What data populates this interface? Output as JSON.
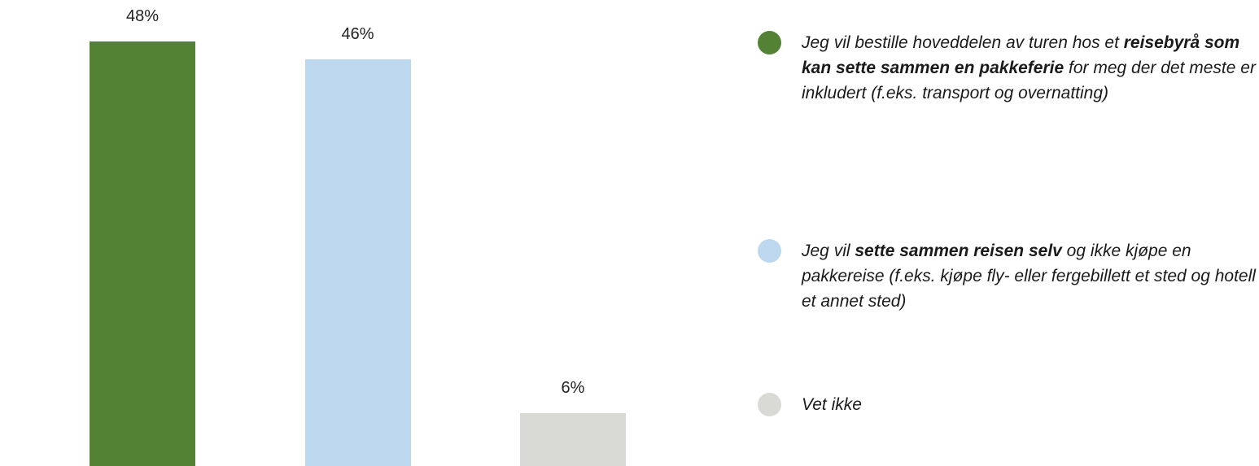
{
  "chart_data": {
    "type": "bar",
    "categories": [
      null,
      null,
      null
    ],
    "values": [
      48,
      46,
      6
    ],
    "value_labels": [
      "48%",
      "46%",
      "6%"
    ],
    "colors": [
      "#548235",
      "#bdd7ee",
      "#d9d9d6"
    ],
    "ylim": [
      0,
      48
    ],
    "legend": [
      {
        "parts": [
          {
            "text": "Jeg vil bestille hoveddelen av turen hos et "
          },
          {
            "text": "reisebyrå som kan sette sammen en pakkeferie",
            "bold": true
          },
          {
            "text": " for meg der det meste er inkludert (f.eks. transport og overnatting)"
          }
        ]
      },
      {
        "parts": [
          {
            "text": "Jeg vil "
          },
          {
            "text": "sette sammen reisen selv",
            "bold": true
          },
          {
            "text": " og ikke kjøpe en pakkereise (f.eks. kjøpe fly- eller fergebillett et sted og hotell et annet sted)"
          }
        ]
      },
      {
        "parts": [
          {
            "text": "Vet ikke"
          }
        ]
      }
    ]
  }
}
